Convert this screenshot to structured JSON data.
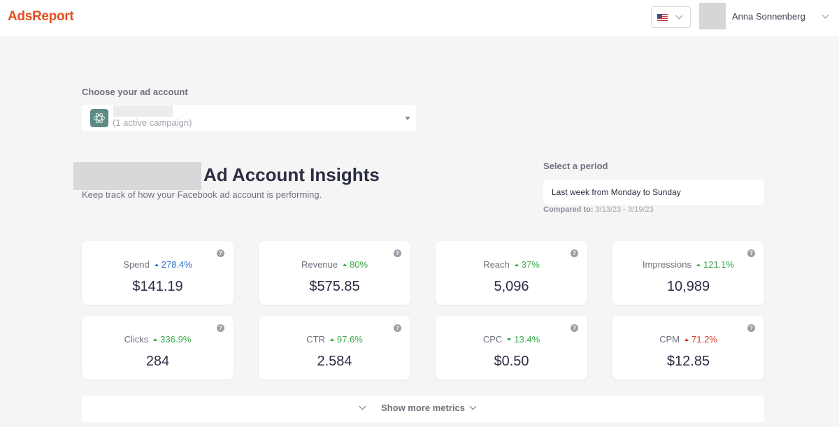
{
  "app": {
    "logo": "AdsReport"
  },
  "header": {
    "user_name": "Anna Sonnenberg",
    "icons": [
      "us-flag-icon",
      "chevron-down-icon"
    ]
  },
  "account": {
    "label": "Choose your ad account",
    "sub": "(1 active campaign)"
  },
  "page": {
    "title": "Ad Account Insights",
    "subtitle": "Keep track of how your Facebook ad account is performing."
  },
  "period": {
    "label": "Select a period",
    "value": "Last week from Monday to Sunday",
    "compared_label": "Compared to:",
    "compared_range": "3/13/23 - 3/19/23"
  },
  "colors": {
    "brand": "#e3501f",
    "blue": "#2b6fd0",
    "green": "#3aa94a",
    "red": "#d93a35"
  },
  "metrics": [
    {
      "name": "Spend",
      "change": "278.4%",
      "direction": "up",
      "color": "#2b6fd0",
      "value": "$141.19"
    },
    {
      "name": "Revenue",
      "change": "80%",
      "direction": "up",
      "color": "#3aa94a",
      "value": "$575.85"
    },
    {
      "name": "Reach",
      "change": "37%",
      "direction": "up",
      "color": "#3aa94a",
      "value": "5,096"
    },
    {
      "name": "Impressions",
      "change": "121.1%",
      "direction": "up",
      "color": "#3aa94a",
      "value": "10,989"
    },
    {
      "name": "Clicks",
      "change": "336.9%",
      "direction": "up",
      "color": "#3aa94a",
      "value": "284"
    },
    {
      "name": "CTR",
      "change": "97.6%",
      "direction": "up",
      "color": "#3aa94a",
      "value": "2.584"
    },
    {
      "name": "CPC",
      "change": "13.4%",
      "direction": "down",
      "color": "#3aa94a",
      "value": "$0.50"
    },
    {
      "name": "CPM",
      "change": "71.2%",
      "direction": "up",
      "color": "#d93a35",
      "value": "$12.85"
    }
  ],
  "more": {
    "label": "Show more metrics"
  }
}
